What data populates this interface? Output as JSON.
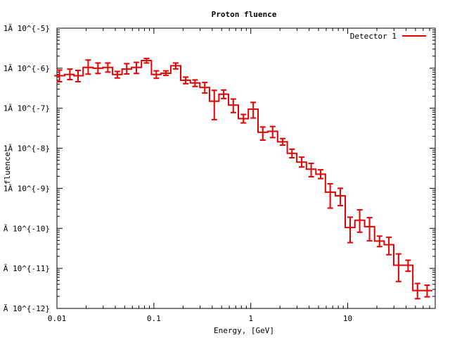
{
  "chart_data": {
    "type": "line",
    "title": "Proton fluence",
    "xlabel": "Energy, [GeV]",
    "ylabel": "fluence",
    "x_scale": "log",
    "y_scale": "log",
    "xlim": [
      0.01,
      80
    ],
    "ylim": [
      1e-12,
      1e-05
    ],
    "x_ticks": [
      0.01,
      0.1,
      1,
      10
    ],
    "x_tick_labels": [
      "0.01",
      "0.1",
      "1",
      "10"
    ],
    "y_ticks": [
      1e-05,
      1e-06,
      1e-07,
      1e-08,
      1e-09,
      1e-10,
      1e-11,
      1e-12
    ],
    "y_tick_labels": [
      "1Ã 10^{-5}",
      "1Ã 10^{-6}",
      "1Ã 10^{-7}",
      "1Ã 10^{-8}",
      "1Ã 10^{-9}",
      "Ã 10^{-10}",
      "Ã 10^{-11}",
      "Ã 10^{-12}"
    ],
    "legend_position": "top-right",
    "grid": false,
    "series": [
      {
        "name": "Detector 1",
        "color": "#e60000",
        "style": "histogram-steps-with-errorbars",
        "points": [
          {
            "x": 0.0106,
            "y": 6.5e-07,
            "lo": 4.6e-07,
            "hi": 9e-07
          },
          {
            "x": 0.0136,
            "y": 7e-07,
            "lo": 5.2e-07,
            "hi": 9.5e-07
          },
          {
            "x": 0.0165,
            "y": 6.5e-07,
            "lo": 4.6e-07,
            "hi": 8.8e-07
          },
          {
            "x": 0.021,
            "y": 1.05e-06,
            "lo": 7.1e-07,
            "hi": 1.6e-06
          },
          {
            "x": 0.0265,
            "y": 1e-06,
            "lo": 7.4e-07,
            "hi": 1.35e-06
          },
          {
            "x": 0.0335,
            "y": 1.05e-06,
            "lo": 8e-07,
            "hi": 1.35e-06
          },
          {
            "x": 0.042,
            "y": 7e-07,
            "lo": 5.7e-07,
            "hi": 8.3e-07
          },
          {
            "x": 0.0525,
            "y": 9.5e-07,
            "lo": 7.2e-07,
            "hi": 1.3e-06
          },
          {
            "x": 0.066,
            "y": 1.05e-06,
            "lo": 7.4e-07,
            "hi": 1.4e-06
          },
          {
            "x": 0.084,
            "y": 1.55e-06,
            "lo": 1.35e-06,
            "hi": 1.75e-06
          },
          {
            "x": 0.106,
            "y": 7e-07,
            "lo": 5.6e-07,
            "hi": 8.6e-07
          },
          {
            "x": 0.133,
            "y": 7.5e-07,
            "lo": 6.6e-07,
            "hi": 8.6e-07
          },
          {
            "x": 0.168,
            "y": 1.15e-06,
            "lo": 9.6e-07,
            "hi": 1.35e-06
          },
          {
            "x": 0.213,
            "y": 5e-07,
            "lo": 4.1e-07,
            "hi": 6e-07
          },
          {
            "x": 0.266,
            "y": 4.3e-07,
            "lo": 3.5e-07,
            "hi": 5.1e-07
          },
          {
            "x": 0.335,
            "y": 3.3e-07,
            "lo": 2.4e-07,
            "hi": 4.4e-07
          },
          {
            "x": 0.42,
            "y": 1.5e-07,
            "lo": 5.2e-08,
            "hi": 2.8e-07
          },
          {
            "x": 0.525,
            "y": 2.25e-07,
            "lo": 1.75e-07,
            "hi": 2.85e-07
          },
          {
            "x": 0.66,
            "y": 1.2e-07,
            "lo": 7.8e-08,
            "hi": 1.7e-07
          },
          {
            "x": 0.84,
            "y": 5.5e-08,
            "lo": 4.3e-08,
            "hi": 7e-08
          },
          {
            "x": 1.06,
            "y": 9.5e-08,
            "lo": 5.7e-08,
            "hi": 1.4e-07
          },
          {
            "x": 1.33,
            "y": 2.5e-08,
            "lo": 1.6e-08,
            "hi": 3.4e-08
          },
          {
            "x": 1.68,
            "y": 2.65e-08,
            "lo": 1.85e-08,
            "hi": 3.5e-08
          },
          {
            "x": 2.13,
            "y": 1.45e-08,
            "lo": 1.2e-08,
            "hi": 1.75e-08
          },
          {
            "x": 2.66,
            "y": 7.5e-09,
            "lo": 5.8e-09,
            "hi": 9.5e-09
          },
          {
            "x": 3.35,
            "y": 4.5e-09,
            "lo": 3.4e-09,
            "hi": 6e-09
          },
          {
            "x": 4.2,
            "y": 3e-09,
            "lo": 1.95e-09,
            "hi": 4.2e-09
          },
          {
            "x": 5.25,
            "y": 2.25e-09,
            "lo": 1.75e-09,
            "hi": 2.9e-09
          },
          {
            "x": 6.6,
            "y": 8e-10,
            "lo": 3.2e-10,
            "hi": 1.3e-09
          },
          {
            "x": 8.4,
            "y": 6.5e-10,
            "lo": 3.7e-10,
            "hi": 1e-09
          },
          {
            "x": 10.6,
            "y": 1.05e-10,
            "lo": 4.4e-11,
            "hi": 1.9e-10
          },
          {
            "x": 13.3,
            "y": 1.6e-10,
            "lo": 8e-11,
            "hi": 2.9e-10
          },
          {
            "x": 16.8,
            "y": 1.1e-10,
            "lo": 4.9e-11,
            "hi": 1.85e-10
          },
          {
            "x": 21.3,
            "y": 4.8e-11,
            "lo": 3.5e-11,
            "hi": 6.4e-11
          },
          {
            "x": 26.6,
            "y": 3.9e-11,
            "lo": 2.2e-11,
            "hi": 6e-11
          },
          {
            "x": 33.5,
            "y": 1.2e-11,
            "lo": 4.7e-12,
            "hi": 2.3e-11
          },
          {
            "x": 42,
            "y": 1.2e-11,
            "lo": 8.5e-12,
            "hi": 1.6e-11
          },
          {
            "x": 52.5,
            "y": 2.8e-12,
            "lo": 1.75e-12,
            "hi": 4.2e-12
          },
          {
            "x": 66,
            "y": 2.8e-12,
            "lo": 1.95e-12,
            "hi": 3.8e-12
          }
        ]
      }
    ]
  }
}
